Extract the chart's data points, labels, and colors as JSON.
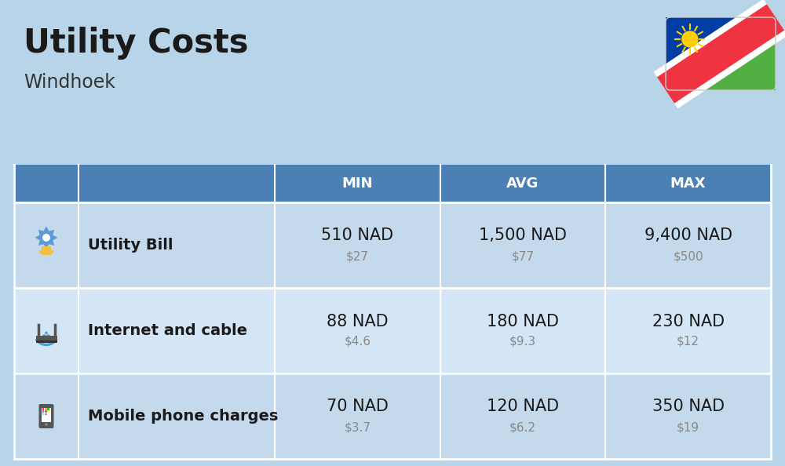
{
  "title": "Utility Costs",
  "subtitle": "Windhoek",
  "background_color": "#b8d4e8",
  "header_bg_color": "#4a80b4",
  "header_text_color": "#ffffff",
  "row_bg_colors": [
    "#c5d9ec",
    "#d4e5f5",
    "#c5d9ec"
  ],
  "col_headers": [
    "MIN",
    "AVG",
    "MAX"
  ],
  "rows": [
    {
      "label": "Utility Bill",
      "min_nad": "510 NAD",
      "min_usd": "$27",
      "avg_nad": "1,500 NAD",
      "avg_usd": "$77",
      "max_nad": "9,400 NAD",
      "max_usd": "$500"
    },
    {
      "label": "Internet and cable",
      "min_nad": "88 NAD",
      "min_usd": "$4.6",
      "avg_nad": "180 NAD",
      "avg_usd": "$9.3",
      "max_nad": "230 NAD",
      "max_usd": "$12"
    },
    {
      "label": "Mobile phone charges",
      "min_nad": "70 NAD",
      "min_usd": "$3.7",
      "avg_nad": "120 NAD",
      "avg_usd": "$6.2",
      "max_nad": "350 NAD",
      "max_usd": "$19"
    }
  ],
  "title_fontsize": 30,
  "subtitle_fontsize": 17,
  "header_fontsize": 13,
  "cell_nad_fontsize": 15,
  "cell_usd_fontsize": 11,
  "label_fontsize": 14,
  "flag_colors": {
    "blue": "#003DA5",
    "green": "#52B043",
    "red": "#EF3340",
    "white": "#FFFFFF",
    "sun": "#FFD100"
  }
}
